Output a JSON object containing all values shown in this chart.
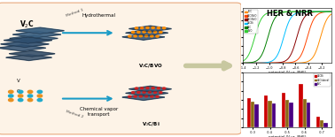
{
  "title": "HER & NRR",
  "bg_color": "#fdf3e7",
  "outer_bg": "#ffffff",
  "her_lines": {
    "xlabel": "potential (V vs. RHE)",
    "ylabel": "j (mA cm⁻²)",
    "colors": [
      "#ff8c00",
      "#ff4500",
      "#8b0000",
      "#00bfff",
      "#008000",
      "#32cd32"
    ],
    "shifts": [
      -0.22,
      -0.42,
      -0.58,
      -0.78,
      -1.02,
      -1.22
    ],
    "labels": [
      "Pt/C",
      "V2C/BVO",
      "V2C/BVO",
      "V2CBi",
      "V2C",
      "BVO"
    ]
  },
  "nrr_bars": {
    "categories": [
      "-0.3",
      "-0.4",
      "-0.5",
      "-0.6",
      "-0.7"
    ],
    "colors": [
      "#cc0000",
      "#8b6914",
      "#4b0082"
    ],
    "values": [
      [
        3.2,
        3.5,
        3.8,
        4.8,
        1.2
      ],
      [
        2.8,
        2.9,
        3.0,
        3.1,
        0.8
      ],
      [
        2.5,
        2.6,
        2.7,
        2.7,
        0.5
      ]
    ],
    "labels": [
      "V2CBi",
      "V2C(doted)",
      "BVC"
    ],
    "xlabel": "potential (V vs. RHE)",
    "ylabel": "FE (%)"
  },
  "arrow_color": "#1a9bc7",
  "big_arrow_color": "#c8c8a0",
  "mxene_color": "#2f4f6f",
  "mxene_edge": "#1a2a3a",
  "orange_atom": "#e89020",
  "cyan_atom": "#20aacc",
  "border_color": "#e8a87c"
}
